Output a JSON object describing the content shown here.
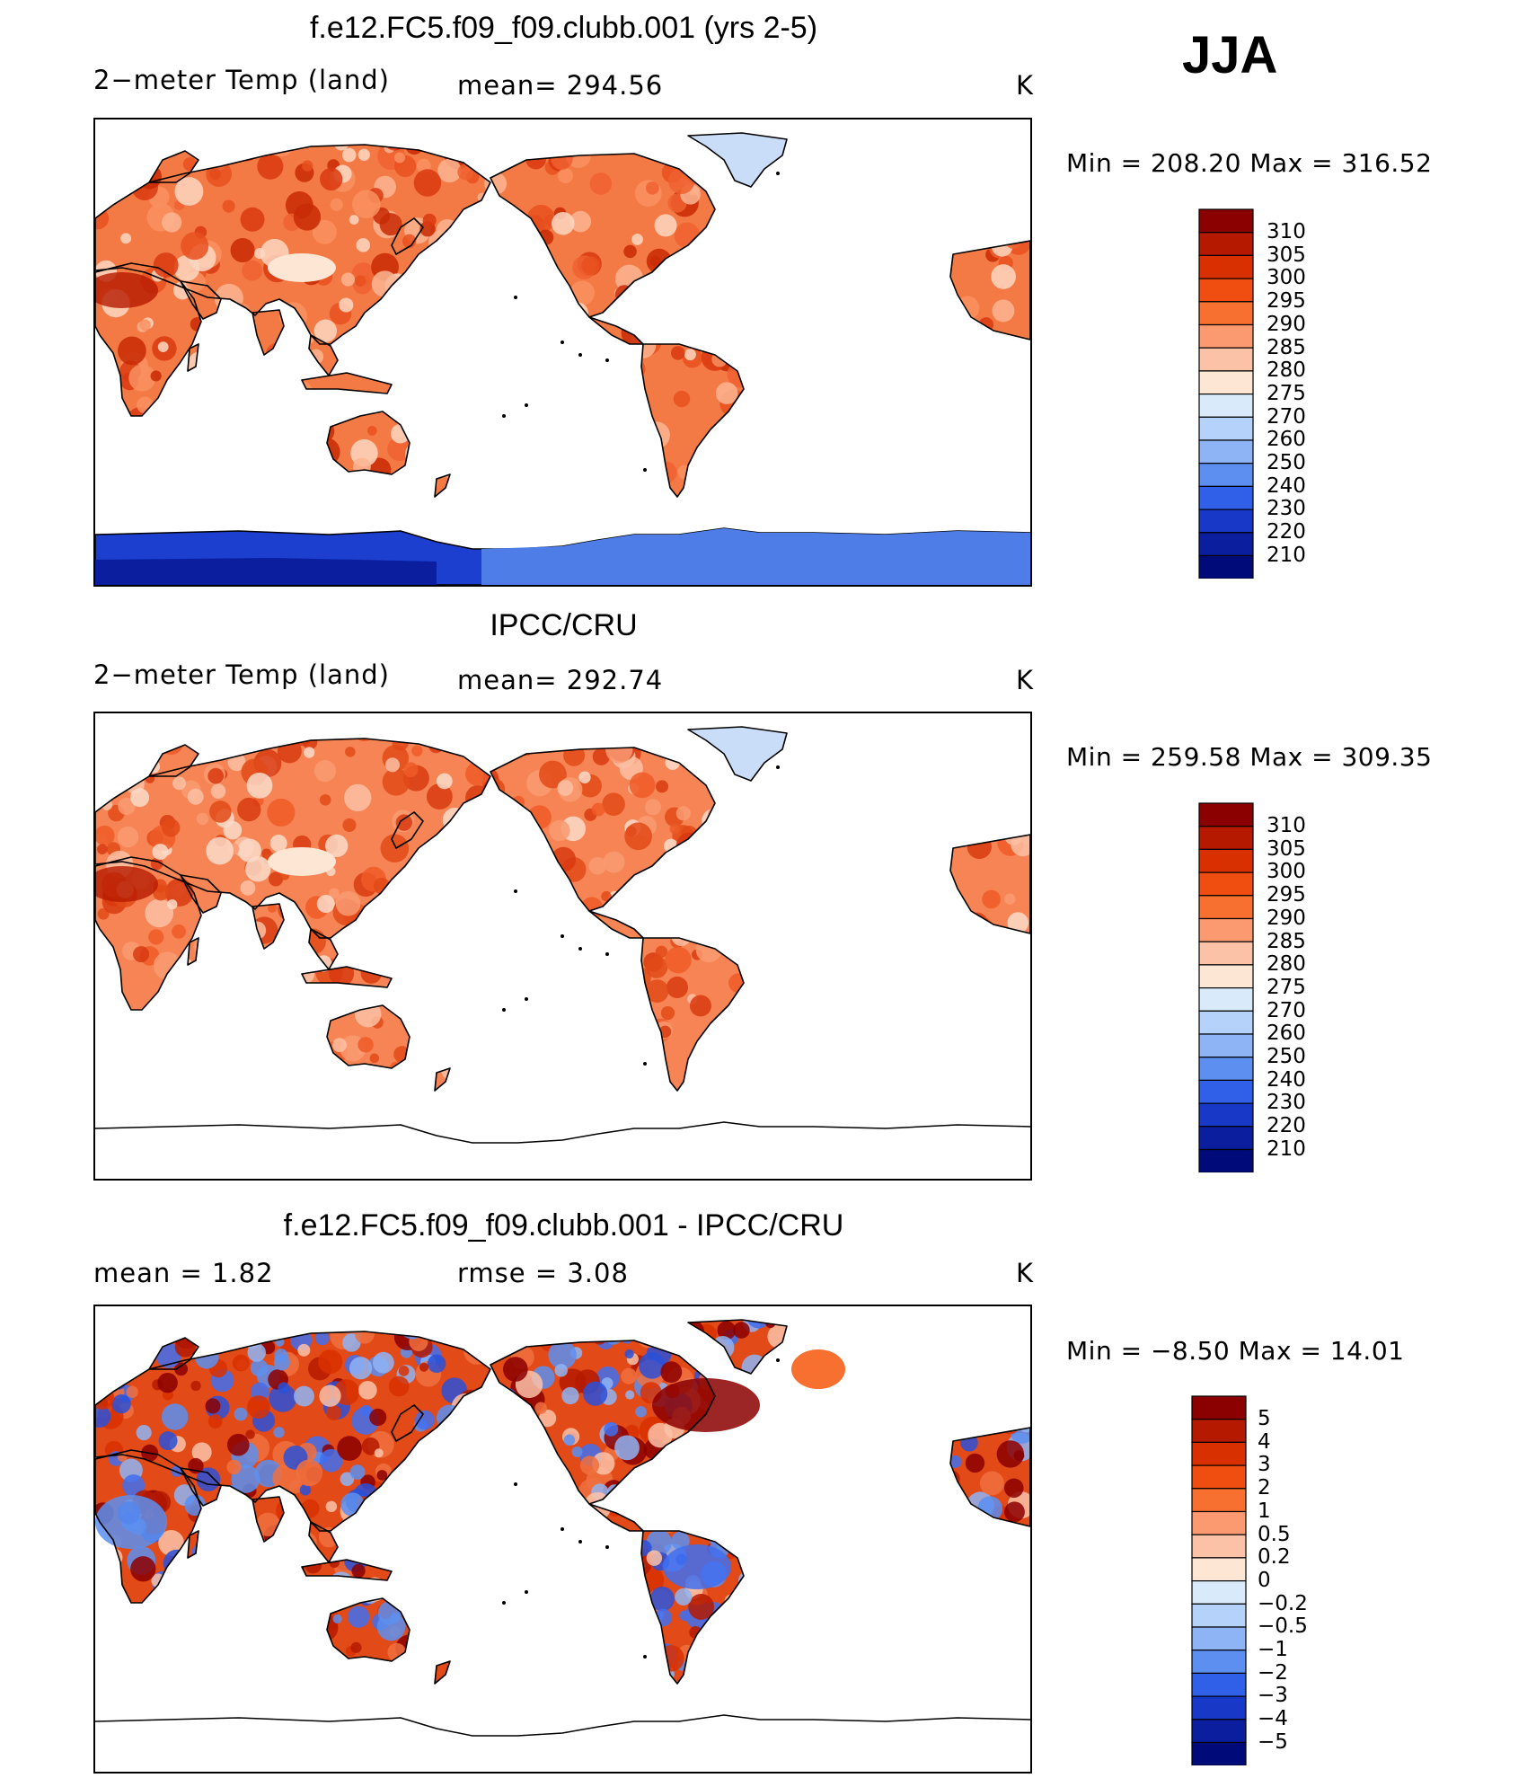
{
  "season": "JJA",
  "panels": [
    {
      "id": "model",
      "title": "f.e12.FC5.f09_f09.clubb.001 (yrs 2-5)",
      "left_label": "2−meter Temp (land)",
      "mid_label": "mean=  294.56",
      "unit": "K",
      "minmax": "Min  =  208.20  Max  =  316.52",
      "colorbar_labels": [
        "310",
        "305",
        "300",
        "295",
        "290",
        "285",
        "280",
        "275",
        "270",
        "260",
        "250",
        "240",
        "230",
        "220",
        "210"
      ],
      "colorbar_colors": [
        "#8b0000",
        "#b51a00",
        "#d93000",
        "#f04d10",
        "#f87030",
        "#fb9a70",
        "#fcc2a8",
        "#fde6d4",
        "#d9ebfb",
        "#b5d2fa",
        "#8fb4f5",
        "#5c8ff0",
        "#3060e8",
        "#1838c8",
        "#0a1e9e",
        "#000a78"
      ],
      "map_style": "model"
    },
    {
      "id": "obs",
      "title": "IPCC/CRU",
      "left_label": "2−meter Temp (land)",
      "mid_label": "mean=  292.74",
      "unit": "K",
      "minmax": "Min  =  259.58  Max  =  309.35",
      "colorbar_labels": [
        "310",
        "305",
        "300",
        "295",
        "290",
        "285",
        "280",
        "275",
        "270",
        "260",
        "250",
        "240",
        "230",
        "220",
        "210"
      ],
      "colorbar_colors": [
        "#8b0000",
        "#b51a00",
        "#d93000",
        "#f04d10",
        "#f87030",
        "#fb9a70",
        "#fcc2a8",
        "#fde6d4",
        "#d9ebfb",
        "#b5d2fa",
        "#8fb4f5",
        "#5c8ff0",
        "#3060e8",
        "#1838c8",
        "#0a1e9e",
        "#000a78"
      ],
      "map_style": "obs"
    },
    {
      "id": "diff",
      "title": "f.e12.FC5.f09_f09.clubb.001 - IPCC/CRU",
      "left_label": "mean  =      1.82",
      "mid_label": "rmse  =      3.08",
      "unit": "K",
      "minmax": "Min  =      −8.50  Max  =      14.01",
      "colorbar_labels": [
        "5",
        "4",
        "3",
        "2",
        "1",
        "0.5",
        "0.2",
        "0",
        "−0.2",
        "−0.5",
        "−1",
        "−2",
        "−3",
        "−4",
        "−5"
      ],
      "colorbar_colors": [
        "#8b0000",
        "#b51a00",
        "#d93000",
        "#f04d10",
        "#f87030",
        "#fb9a70",
        "#fcc2a8",
        "#fde6d4",
        "#d9ebfb",
        "#b5d2fa",
        "#8fb4f5",
        "#5c8ff0",
        "#3060e8",
        "#1838c8",
        "#0a1e9e",
        "#000a78"
      ],
      "map_style": "diff"
    }
  ]
}
